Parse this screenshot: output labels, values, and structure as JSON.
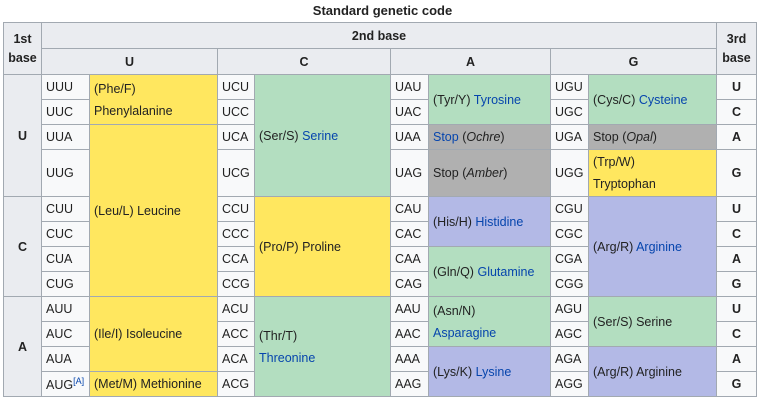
{
  "caption": "Standard genetic code",
  "head": {
    "first": "1st\nbase",
    "second": "2nd base",
    "third": "3rd\nbase",
    "cols": [
      "U",
      "C",
      "A",
      "G"
    ]
  },
  "rows": {
    "U": "U",
    "C": "C",
    "A": "A"
  },
  "third": [
    "U",
    "C",
    "A",
    "G",
    "U",
    "C",
    "A",
    "G",
    "U",
    "C",
    "A",
    "G"
  ],
  "codons": {
    "UUU": "UUU",
    "UUC": "UUC",
    "UUA": "UUA",
    "UUG": "UUG",
    "CUU": "CUU",
    "CUC": "CUC",
    "CUA": "CUA",
    "CUG": "CUG",
    "AUU": "AUU",
    "AUC": "AUC",
    "AUA": "AUA",
    "AUG": "AUG",
    "UCU": "UCU",
    "UCC": "UCC",
    "UCA": "UCA",
    "UCG": "UCG",
    "CCU": "CCU",
    "CCC": "CCC",
    "CCA": "CCA",
    "CCG": "CCG",
    "ACU": "ACU",
    "ACC": "ACC",
    "ACA": "ACA",
    "ACG": "ACG",
    "UAU": "UAU",
    "UAC": "UAC",
    "UAA": "UAA",
    "UAG": "UAG",
    "CAU": "CAU",
    "CAC": "CAC",
    "CAA": "CAA",
    "CAG": "CAG",
    "AAU": "AAU",
    "AAC": "AAC",
    "AAA": "AAA",
    "AAG": "AAG",
    "UGU": "UGU",
    "UGC": "UGC",
    "UGA": "UGA",
    "UGG": "UGG",
    "CGU": "CGU",
    "CGC": "CGC",
    "CGA": "CGA",
    "CGG": "CGG",
    "AGU": "AGU",
    "AGC": "AGC",
    "AGA": "AGA",
    "AGG": "AGG"
  },
  "aug_note": "[A]",
  "aa": {
    "phe_abbr": "(Phe/F)",
    "phe_name": "Phenylalanine",
    "leu_abbr": "(Leu/L)",
    "leu_name": "Leucine",
    "ile_abbr": "(Ile/I)",
    "ile_name": "Isoleucine",
    "met_abbr": "(Met/M)",
    "met_name": "Methionine",
    "ser_abbr": "(Ser/S)",
    "ser_name": "Serine",
    "pro_abbr": "(Pro/P)",
    "pro_name": "Proline",
    "thr_abbr": "(Thr/T)",
    "thr_name": "Threonine",
    "tyr_abbr": "(Tyr/Y)",
    "tyr_name": "Tyrosine",
    "stop": "Stop",
    "ochre": "Ochre",
    "amber": "Amber",
    "opal": "Opal",
    "his_abbr": "(His/H)",
    "his_name": "Histidine",
    "gln_abbr": "(Gln/Q)",
    "gln_name": "Glutamine",
    "asn_abbr": "(Asn/N)",
    "asn_name": "Asparagine",
    "lys_abbr": "(Lys/K)",
    "lys_name": "Lysine",
    "cys_abbr": "(Cys/C)",
    "cys_name": "Cysteine",
    "trp_abbr": "(Trp/W)",
    "trp_name": "Tryptophan",
    "arg_abbr": "(Arg/R)",
    "arg_name": "Arginine",
    "ser2_abbr": "(Ser/S)",
    "ser2_name": "Serine",
    "arg2_abbr": "(Arg/R)",
    "arg2_name": "Arginine"
  },
  "colors": {
    "nonpolar": "#ffe75f",
    "polar": "#b3dec0",
    "basic": "#b3b9e6",
    "stop": "#b0b0b0",
    "link": "#0645ad"
  }
}
